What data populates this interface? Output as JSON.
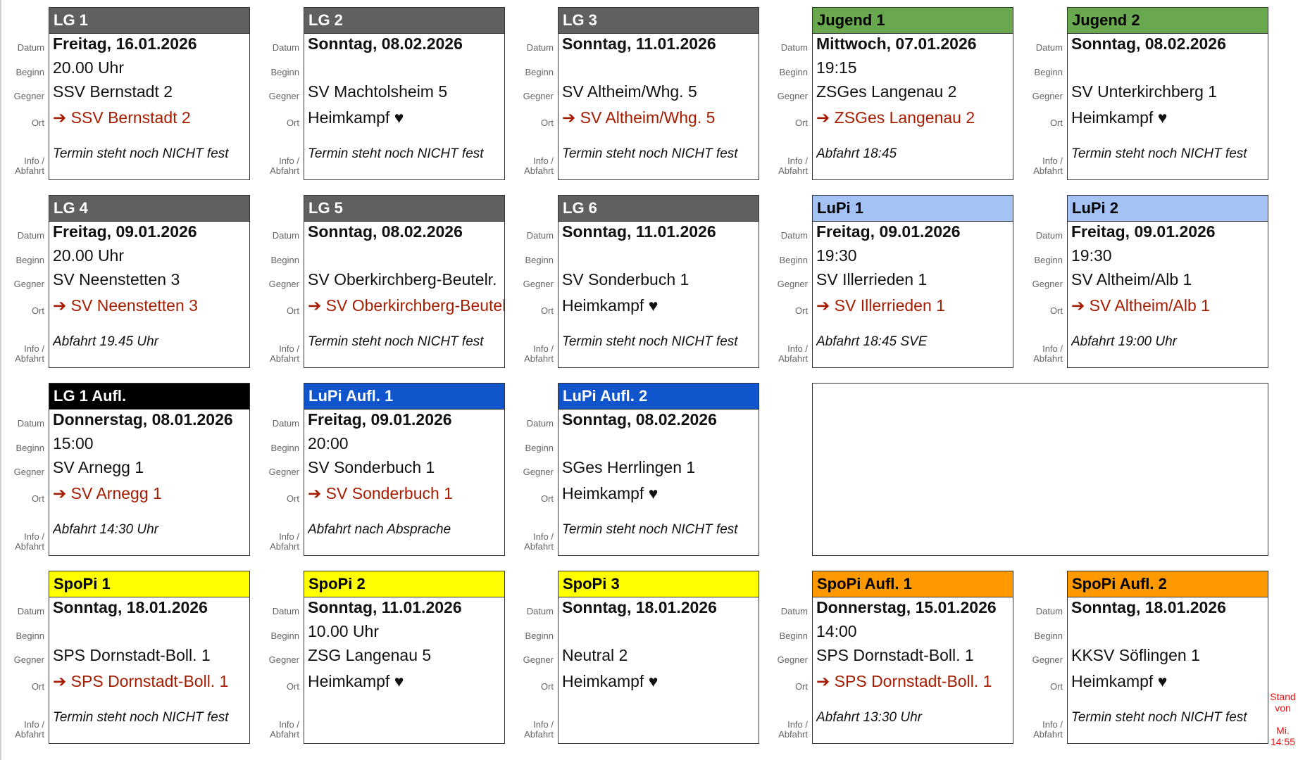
{
  "labels": {
    "date": "Datum",
    "begin": "Beginn",
    "opponent": "Gegner",
    "location": "Ort",
    "info": "Info /",
    "info2": "Abfahrt"
  },
  "colors": {
    "gray": "#606060",
    "green": "#6aa84f",
    "lightblue": "#a4c2f4",
    "black": "#000000",
    "blue": "#1155cc",
    "yellow": "#ffff00",
    "orange": "#ff9900",
    "away_text": "#a61c00"
  },
  "cards": [
    {
      "title": "LG 1",
      "color": "gray",
      "date": "Freitag, 16.01.2026",
      "begin": "20.00 Uhr",
      "opponent": "SSV Bernstadt 2",
      "location": "➔ SSV Bernstadt 2",
      "away": true,
      "info": "Termin steht noch NICHT fest"
    },
    {
      "title": "LG 2",
      "color": "gray",
      "date": "Sonntag, 08.02.2026",
      "begin": "",
      "opponent": "SV Machtolsheim 5",
      "location": "Heimkampf ♥",
      "away": false,
      "info": "Termin steht noch NICHT fest"
    },
    {
      "title": "LG 3",
      "color": "gray",
      "date": "Sonntag, 11.01.2026",
      "begin": "",
      "opponent": "SV Altheim/Whg. 5",
      "location": "➔ SV Altheim/Whg. 5",
      "away": true,
      "info": "Termin steht noch NICHT fest"
    },
    {
      "title": "Jugend 1",
      "color": "green",
      "date": "Mittwoch, 07.01.2026",
      "begin": "19:15",
      "opponent": "ZSGes Langenau 2",
      "location": "➔ ZSGes Langenau 2",
      "away": true,
      "info": "Abfahrt 18:45"
    },
    {
      "title": "Jugend 2",
      "color": "green",
      "date": "Sonntag, 08.02.2026",
      "begin": "",
      "opponent": "SV Unterkirchberg 1",
      "location": "Heimkampf ♥",
      "away": false,
      "info": "Termin steht noch NICHT fest"
    },
    {
      "title": "LG 4",
      "color": "gray",
      "date": "Freitag, 09.01.2026",
      "begin": "20.00 Uhr",
      "opponent": "SV Neenstetten 3",
      "location": "➔ SV Neenstetten 3",
      "away": true,
      "info": "Abfahrt 19.45 Uhr"
    },
    {
      "title": "LG 5",
      "color": "gray",
      "date": "Sonntag, 08.02.2026",
      "begin": "",
      "opponent": "SV Oberkirchberg-Beutelr.",
      "location": "➔ SV Oberkirchberg-Beutelr.",
      "away": true,
      "info": "Termin steht noch NICHT fest"
    },
    {
      "title": "LG 6",
      "color": "gray",
      "date": "Sonntag, 11.01.2026",
      "begin": "",
      "opponent": "SV Sonderbuch 1",
      "location": "Heimkampf ♥",
      "away": false,
      "info": "Termin steht noch NICHT fest"
    },
    {
      "title": "LuPi 1",
      "color": "lightblue",
      "date": "Freitag, 09.01.2026",
      "begin": "19:30",
      "opponent": "SV Illerrieden 1",
      "location": "➔ SV Illerrieden 1",
      "away": true,
      "info": "Abfahrt 18:45 SVE"
    },
    {
      "title": "LuPi 2",
      "color": "lightblue",
      "date": "Freitag, 09.01.2026",
      "begin": "19:30",
      "opponent": "SV Altheim/Alb 1",
      "location": "➔ SV Altheim/Alb 1",
      "away": true,
      "info": "Abfahrt 19:00 Uhr"
    },
    {
      "title": "LG 1 Aufl.",
      "color": "black",
      "date": "Donnerstag, 08.01.2026",
      "begin": "15:00",
      "opponent": "SV Arnegg 1",
      "location": "➔ SV Arnegg 1",
      "away": true,
      "info": "Abfahrt 14:30 Uhr"
    },
    {
      "title": "LuPi Aufl. 1",
      "color": "blue",
      "date": "Freitag, 09.01.2026",
      "begin": "20:00",
      "opponent": "SV Sonderbuch 1",
      "location": "➔ SV Sonderbuch 1",
      "away": true,
      "info": "Abfahrt nach Absprache"
    },
    {
      "title": "LuPi Aufl. 2",
      "color": "blue",
      "date": "Sonntag, 08.02.2026",
      "begin": "",
      "opponent": "SGes Herrlingen 1",
      "location": "Heimkampf ♥",
      "away": false,
      "info": "Termin steht noch NICHT fest"
    },
    {
      "title": "SpoPi 1",
      "color": "yellow",
      "date": "Sonntag, 18.01.2026",
      "begin": "",
      "opponent": "SPS Dornstadt-Boll. 1",
      "location": "➔ SPS Dornstadt-Boll. 1",
      "away": true,
      "info": "Termin steht noch NICHT fest"
    },
    {
      "title": "SpoPi 2",
      "color": "yellow",
      "date": "Sonntag, 11.01.2026",
      "begin": "10.00 Uhr",
      "opponent": "ZSG Langenau 5",
      "location": "Heimkampf ♥",
      "away": false,
      "info": ""
    },
    {
      "title": "SpoPi 3",
      "color": "yellow",
      "date": "Sonntag, 18.01.2026",
      "begin": "",
      "opponent": "Neutral 2",
      "location": "Heimkampf ♥",
      "away": false,
      "info": ""
    },
    {
      "title": "SpoPi Aufl. 1",
      "color": "orange",
      "date": "Donnerstag, 15.01.2026",
      "begin": "14:00",
      "opponent": "SPS Dornstadt-Boll. 1",
      "location": "➔ SPS Dornstadt-Boll. 1",
      "away": true,
      "info": "Abfahrt 13:30 Uhr"
    },
    {
      "title": "SpoPi Aufl. 2",
      "color": "orange",
      "date": "Sonntag, 18.01.2026",
      "begin": "",
      "opponent": "KKSV Söflingen 1",
      "location": "Heimkampf ♥",
      "away": false,
      "info": "Termin steht noch NICHT fest"
    }
  ],
  "stand": {
    "line1": "Stand",
    "line2": "von",
    "line3": "Mi.",
    "line4": "14:55"
  }
}
